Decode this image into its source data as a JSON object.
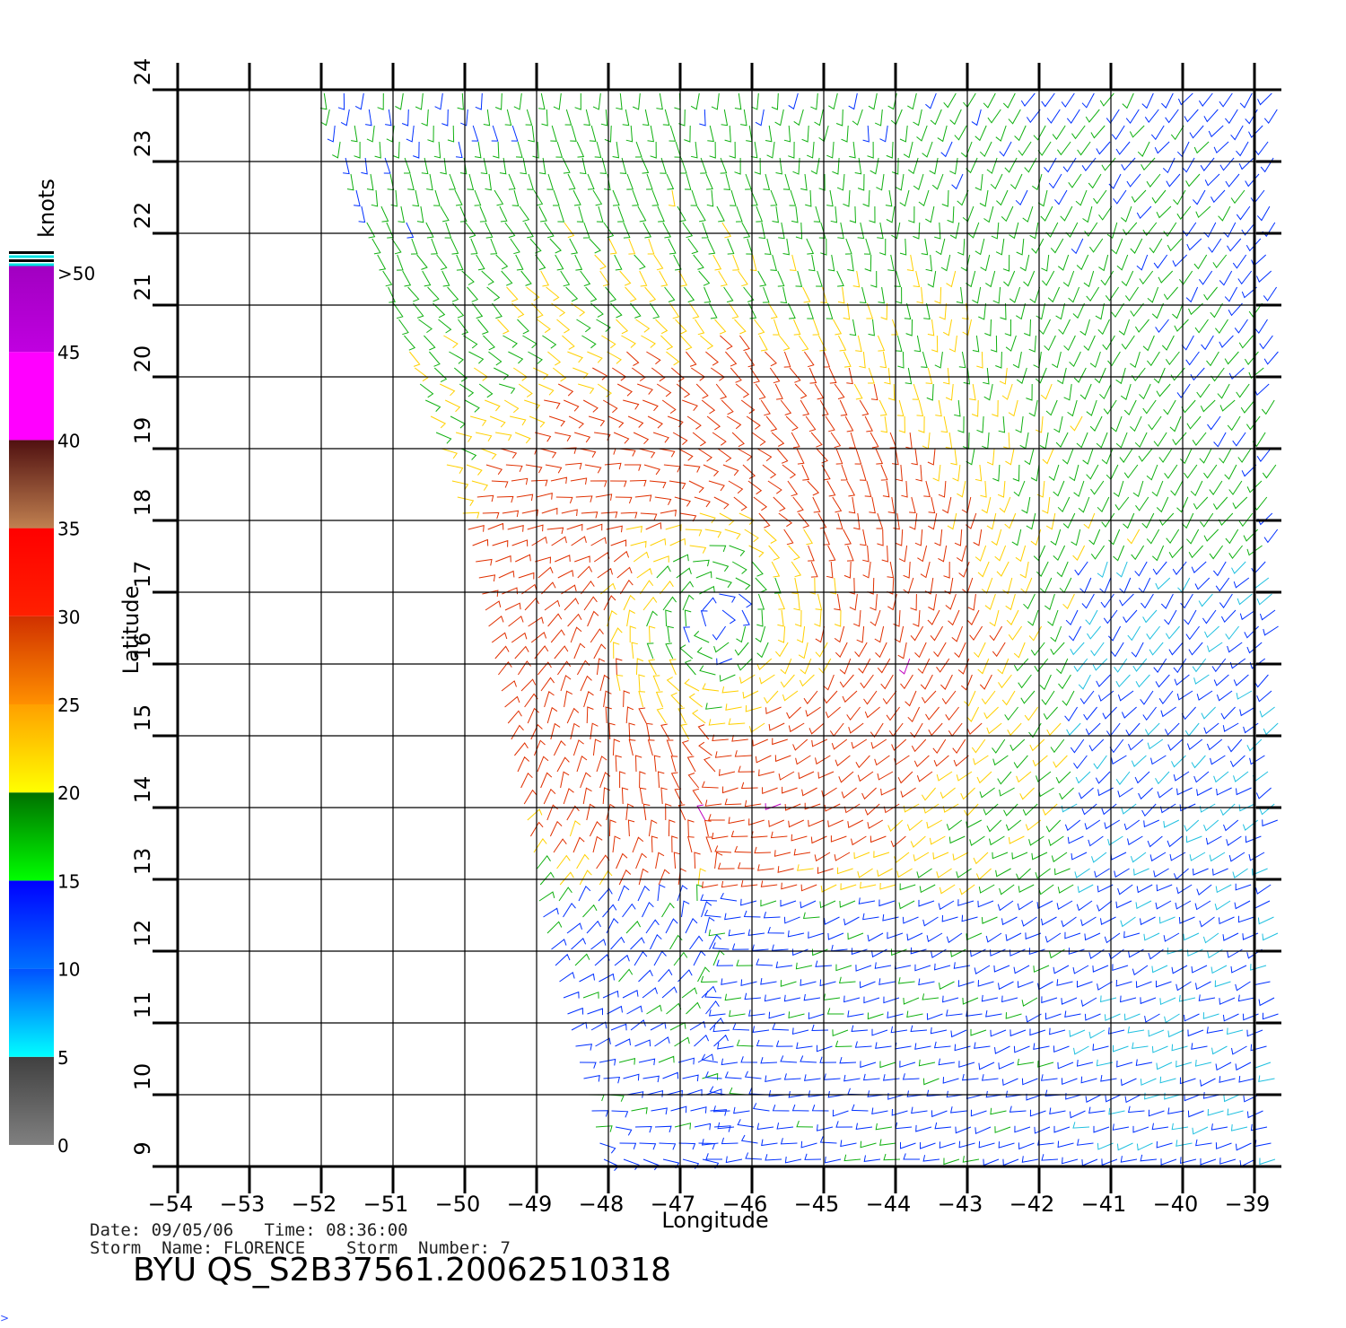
{
  "plot": {
    "xlabel": "Longitude",
    "ylabel": "Latitude",
    "x_ticks": [
      -54,
      -53,
      -52,
      -51,
      -50,
      -49,
      -48,
      -47,
      -46,
      -45,
      -44,
      -43,
      -42,
      -41,
      -40,
      -39
    ],
    "y_ticks": [
      9,
      10,
      11,
      12,
      13,
      14,
      15,
      16,
      17,
      18,
      19,
      20,
      21,
      22,
      23,
      24
    ],
    "lon_range": [
      -54,
      -39
    ],
    "lat_range": [
      9,
      24
    ]
  },
  "colorbar": {
    "unit_label": "knots",
    "tick_labels": [
      "0",
      "5",
      "10",
      "15",
      "20",
      "25",
      "30",
      "35",
      "40",
      "45",
      ">50"
    ],
    "bands": [
      {
        "top": "#404040",
        "bottom": "#808080"
      },
      {
        "top": "#0050ff",
        "bottom": "#00ffff"
      },
      {
        "top": "#0000ff",
        "bottom": "#0070ff"
      },
      {
        "top": "#007000",
        "bottom": "#00ff00"
      },
      {
        "top": "#ffa000",
        "bottom": "#ffff00"
      },
      {
        "top": "#d03000",
        "bottom": "#ff9000"
      },
      {
        "top": "#ff0000",
        "bottom": "#ff2000"
      },
      {
        "top": "#501010",
        "bottom": "#c08050"
      },
      {
        "top": "#ff00ff",
        "bottom": "#ff00ff"
      },
      {
        "top": "#a000c0",
        "bottom": "#c000e0"
      },
      {
        "top": "#7000b0",
        "bottom": "#5000c0"
      }
    ],
    "cap_colors": [
      "#000000",
      "#00e0e0",
      "#000000",
      "#00e0e0"
    ]
  },
  "storm_center": {
    "lon": -46.5,
    "lat": 16.6
  },
  "info": {
    "date_line": "Date: 09/05/06   Time: 08:36:00",
    "storm_line": "Storm  Name: FLORENCE    Storm  Number: 7",
    "product_id": "BYU  QS_S2B37561.20062510318"
  },
  "corner_mark": ">"
}
